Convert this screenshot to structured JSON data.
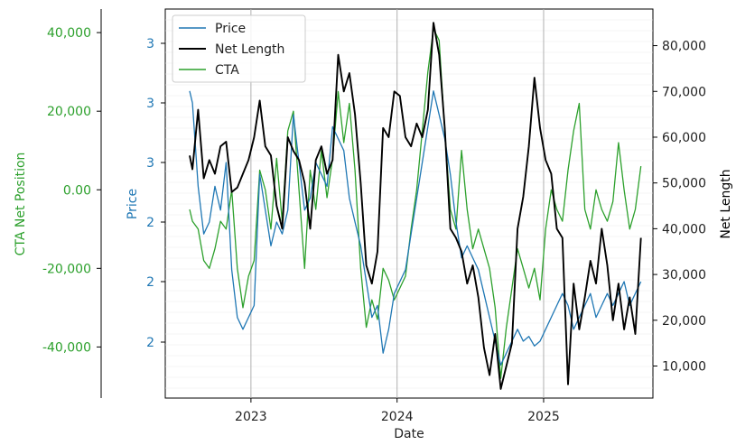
{
  "chart_data": {
    "type": "line",
    "xlabel": "Date",
    "x_ticks": [
      "2023",
      "2024",
      "2025"
    ],
    "x_range": [
      "2022-06-01",
      "2025-10-01"
    ],
    "axes": {
      "price": {
        "label": "Price",
        "color": "#1f77b4",
        "tick_labels": [
          "3",
          "3",
          "3",
          "2",
          "2",
          "2"
        ]
      },
      "net_length": {
        "label": "Net Length",
        "color": "#000000",
        "ylim": [
          3000,
          88000
        ],
        "ticks": [
          10000,
          20000,
          30000,
          40000,
          50000,
          60000,
          70000,
          80000
        ],
        "tick_labels": [
          "10,000",
          "20,000",
          "30,000",
          "40,000",
          "50,000",
          "60,000",
          "70,000",
          "80,000"
        ]
      },
      "cta": {
        "label": "CTA Net Position",
        "color": "#2ca02c",
        "ylim": [
          -53000,
          46000
        ],
        "ticks": [
          -40000,
          -20000,
          0,
          20000,
          40000
        ],
        "tick_labels": [
          "-40,000",
          "-20,000",
          "0.00",
          "20,000",
          "40,000"
        ]
      }
    },
    "legend": {
      "placement": "top-left",
      "entries": [
        "Price",
        "Net Length",
        "CTA"
      ]
    },
    "grid": "vertical at year ticks, horizontal minor lines",
    "series": [
      {
        "name": "Price",
        "color": "#1f77b4",
        "points": [
          [
            "2022-08-01",
            3.05
          ],
          [
            "2022-08-08",
            3.0
          ],
          [
            "2022-08-22",
            2.65
          ],
          [
            "2022-09-05",
            2.45
          ],
          [
            "2022-09-19",
            2.5
          ],
          [
            "2022-10-03",
            2.65
          ],
          [
            "2022-10-17",
            2.55
          ],
          [
            "2022-10-31",
            2.75
          ],
          [
            "2022-11-14",
            2.3
          ],
          [
            "2022-11-28",
            2.1
          ],
          [
            "2022-12-12",
            2.05
          ],
          [
            "2022-12-26",
            2.1
          ],
          [
            "2023-01-09",
            2.15
          ],
          [
            "2023-01-23",
            2.7
          ],
          [
            "2023-02-06",
            2.55
          ],
          [
            "2023-02-20",
            2.4
          ],
          [
            "2023-03-06",
            2.5
          ],
          [
            "2023-03-20",
            2.45
          ],
          [
            "2023-04-03",
            2.55
          ],
          [
            "2023-04-17",
            2.95
          ],
          [
            "2023-05-01",
            2.75
          ],
          [
            "2023-05-15",
            2.55
          ],
          [
            "2023-05-29",
            2.6
          ],
          [
            "2023-06-12",
            2.75
          ],
          [
            "2023-06-26",
            2.7
          ],
          [
            "2023-07-10",
            2.65
          ],
          [
            "2023-07-24",
            2.9
          ],
          [
            "2023-08-07",
            2.85
          ],
          [
            "2023-08-21",
            2.8
          ],
          [
            "2023-09-04",
            2.6
          ],
          [
            "2023-09-18",
            2.5
          ],
          [
            "2023-10-02",
            2.4
          ],
          [
            "2023-10-16",
            2.25
          ],
          [
            "2023-10-30",
            2.1
          ],
          [
            "2023-11-13",
            2.15
          ],
          [
            "2023-11-27",
            1.95
          ],
          [
            "2023-12-11",
            2.05
          ],
          [
            "2023-12-25",
            2.2
          ],
          [
            "2024-01-08",
            2.25
          ],
          [
            "2024-01-22",
            2.3
          ],
          [
            "2024-02-05",
            2.45
          ],
          [
            "2024-02-19",
            2.6
          ],
          [
            "2024-03-04",
            2.75
          ],
          [
            "2024-03-18",
            2.9
          ],
          [
            "2024-04-01",
            3.05
          ],
          [
            "2024-04-15",
            2.95
          ],
          [
            "2024-04-29",
            2.85
          ],
          [
            "2024-05-13",
            2.7
          ],
          [
            "2024-05-27",
            2.5
          ],
          [
            "2024-06-10",
            2.35
          ],
          [
            "2024-06-24",
            2.4
          ],
          [
            "2024-07-08",
            2.35
          ],
          [
            "2024-07-22",
            2.3
          ],
          [
            "2024-08-05",
            2.2
          ],
          [
            "2024-08-19",
            2.1
          ],
          [
            "2024-09-02",
            2.0
          ],
          [
            "2024-09-16",
            1.9
          ],
          [
            "2024-09-30",
            1.95
          ],
          [
            "2024-10-14",
            2.0
          ],
          [
            "2024-10-28",
            2.05
          ],
          [
            "2024-11-11",
            2.0
          ],
          [
            "2024-11-25",
            2.02
          ],
          [
            "2024-12-09",
            1.98
          ],
          [
            "2024-12-23",
            2.0
          ],
          [
            "2025-01-06",
            2.05
          ],
          [
            "2025-01-20",
            2.1
          ],
          [
            "2025-02-03",
            2.15
          ],
          [
            "2025-02-17",
            2.2
          ],
          [
            "2025-03-03",
            2.15
          ],
          [
            "2025-03-17",
            2.05
          ],
          [
            "2025-03-31",
            2.1
          ],
          [
            "2025-04-14",
            2.15
          ],
          [
            "2025-04-28",
            2.2
          ],
          [
            "2025-05-12",
            2.1
          ],
          [
            "2025-05-26",
            2.15
          ],
          [
            "2025-06-09",
            2.2
          ],
          [
            "2025-06-23",
            2.15
          ],
          [
            "2025-07-07",
            2.2
          ],
          [
            "2025-07-21",
            2.25
          ],
          [
            "2025-08-04",
            2.15
          ],
          [
            "2025-08-18",
            2.2
          ],
          [
            "2025-09-01",
            2.25
          ]
        ]
      },
      {
        "name": "Net Length",
        "color": "#000000",
        "points": [
          [
            "2022-08-01",
            56000
          ],
          [
            "2022-08-08",
            53000
          ],
          [
            "2022-08-22",
            66000
          ],
          [
            "2022-09-05",
            51000
          ],
          [
            "2022-09-19",
            55000
          ],
          [
            "2022-10-03",
            52000
          ],
          [
            "2022-10-17",
            58000
          ],
          [
            "2022-10-31",
            59000
          ],
          [
            "2022-11-14",
            48000
          ],
          [
            "2022-11-28",
            49000
          ],
          [
            "2022-12-12",
            52000
          ],
          [
            "2022-12-26",
            55000
          ],
          [
            "2023-01-09",
            60000
          ],
          [
            "2023-01-23",
            68000
          ],
          [
            "2023-02-06",
            58000
          ],
          [
            "2023-02-20",
            56000
          ],
          [
            "2023-03-06",
            45000
          ],
          [
            "2023-03-20",
            40000
          ],
          [
            "2023-04-03",
            60000
          ],
          [
            "2023-04-17",
            57000
          ],
          [
            "2023-05-01",
            55000
          ],
          [
            "2023-05-15",
            50000
          ],
          [
            "2023-05-29",
            40000
          ],
          [
            "2023-06-12",
            55000
          ],
          [
            "2023-06-26",
            58000
          ],
          [
            "2023-07-10",
            52000
          ],
          [
            "2023-07-24",
            55000
          ],
          [
            "2023-08-07",
            78000
          ],
          [
            "2023-08-21",
            70000
          ],
          [
            "2023-09-04",
            74000
          ],
          [
            "2023-09-18",
            65000
          ],
          [
            "2023-10-02",
            50000
          ],
          [
            "2023-10-16",
            32000
          ],
          [
            "2023-10-30",
            28000
          ],
          [
            "2023-11-13",
            35000
          ],
          [
            "2023-11-27",
            62000
          ],
          [
            "2023-12-11",
            60000
          ],
          [
            "2023-12-25",
            70000
          ],
          [
            "2024-01-08",
            69000
          ],
          [
            "2024-01-22",
            60000
          ],
          [
            "2024-02-05",
            58000
          ],
          [
            "2024-02-19",
            63000
          ],
          [
            "2024-03-04",
            60000
          ],
          [
            "2024-03-18",
            66000
          ],
          [
            "2024-04-01",
            85000
          ],
          [
            "2024-04-15",
            78000
          ],
          [
            "2024-04-29",
            62000
          ],
          [
            "2024-05-13",
            40000
          ],
          [
            "2024-05-27",
            38000
          ],
          [
            "2024-06-10",
            35000
          ],
          [
            "2024-06-24",
            28000
          ],
          [
            "2024-07-08",
            32000
          ],
          [
            "2024-07-22",
            25000
          ],
          [
            "2024-08-05",
            14000
          ],
          [
            "2024-08-19",
            8000
          ],
          [
            "2024-09-02",
            17000
          ],
          [
            "2024-09-16",
            5000
          ],
          [
            "2024-09-30",
            10000
          ],
          [
            "2024-10-14",
            15000
          ],
          [
            "2024-10-28",
            40000
          ],
          [
            "2024-11-11",
            47000
          ],
          [
            "2024-11-25",
            58000
          ],
          [
            "2024-12-09",
            73000
          ],
          [
            "2024-12-23",
            62000
          ],
          [
            "2025-01-06",
            55000
          ],
          [
            "2025-01-20",
            52000
          ],
          [
            "2025-02-03",
            40000
          ],
          [
            "2025-02-17",
            38000
          ],
          [
            "2025-03-03",
            6000
          ],
          [
            "2025-03-17",
            28000
          ],
          [
            "2025-03-31",
            18000
          ],
          [
            "2025-04-14",
            25000
          ],
          [
            "2025-04-28",
            33000
          ],
          [
            "2025-05-12",
            28000
          ],
          [
            "2025-05-26",
            40000
          ],
          [
            "2025-06-09",
            32000
          ],
          [
            "2025-06-23",
            20000
          ],
          [
            "2025-07-07",
            28000
          ],
          [
            "2025-07-21",
            18000
          ],
          [
            "2025-08-04",
            25000
          ],
          [
            "2025-08-18",
            17000
          ],
          [
            "2025-09-01",
            38000
          ]
        ]
      },
      {
        "name": "CTA",
        "color": "#2ca02c",
        "points": [
          [
            "2022-08-01",
            -5000
          ],
          [
            "2022-08-08",
            -8000
          ],
          [
            "2022-08-22",
            -10000
          ],
          [
            "2022-09-05",
            -18000
          ],
          [
            "2022-09-19",
            -20000
          ],
          [
            "2022-10-03",
            -15000
          ],
          [
            "2022-10-17",
            -8000
          ],
          [
            "2022-10-31",
            -10000
          ],
          [
            "2022-11-14",
            0
          ],
          [
            "2022-11-28",
            -20000
          ],
          [
            "2022-12-12",
            -30000
          ],
          [
            "2022-12-26",
            -22000
          ],
          [
            "2023-01-09",
            -18000
          ],
          [
            "2023-01-23",
            5000
          ],
          [
            "2023-02-06",
            0
          ],
          [
            "2023-02-20",
            -10000
          ],
          [
            "2023-03-06",
            8000
          ],
          [
            "2023-03-20",
            -8000
          ],
          [
            "2023-04-03",
            15000
          ],
          [
            "2023-04-17",
            20000
          ],
          [
            "2023-05-01",
            0
          ],
          [
            "2023-05-15",
            -20000
          ],
          [
            "2023-05-29",
            5000
          ],
          [
            "2023-06-12",
            -5000
          ],
          [
            "2023-06-26",
            10000
          ],
          [
            "2023-07-10",
            -2000
          ],
          [
            "2023-07-24",
            8000
          ],
          [
            "2023-08-07",
            25000
          ],
          [
            "2023-08-21",
            12000
          ],
          [
            "2023-09-04",
            22000
          ],
          [
            "2023-09-18",
            5000
          ],
          [
            "2023-10-02",
            -20000
          ],
          [
            "2023-10-16",
            -35000
          ],
          [
            "2023-10-30",
            -28000
          ],
          [
            "2023-11-13",
            -33000
          ],
          [
            "2023-11-27",
            -20000
          ],
          [
            "2023-12-11",
            -23000
          ],
          [
            "2023-12-25",
            -28000
          ],
          [
            "2024-01-08",
            -25000
          ],
          [
            "2024-01-22",
            -22000
          ],
          [
            "2024-02-05",
            -10000
          ],
          [
            "2024-02-19",
            0
          ],
          [
            "2024-03-04",
            15000
          ],
          [
            "2024-03-18",
            30000
          ],
          [
            "2024-04-01",
            41000
          ],
          [
            "2024-04-15",
            38000
          ],
          [
            "2024-04-29",
            15000
          ],
          [
            "2024-05-13",
            -5000
          ],
          [
            "2024-05-27",
            -10000
          ],
          [
            "2024-06-10",
            10000
          ],
          [
            "2024-06-24",
            -5000
          ],
          [
            "2024-07-08",
            -15000
          ],
          [
            "2024-07-22",
            -10000
          ],
          [
            "2024-08-05",
            -15000
          ],
          [
            "2024-08-19",
            -20000
          ],
          [
            "2024-09-02",
            -30000
          ],
          [
            "2024-09-16",
            -48000
          ],
          [
            "2024-09-30",
            -35000
          ],
          [
            "2024-10-14",
            -25000
          ],
          [
            "2024-10-28",
            -15000
          ],
          [
            "2024-11-11",
            -20000
          ],
          [
            "2024-11-25",
            -25000
          ],
          [
            "2024-12-09",
            -20000
          ],
          [
            "2024-12-23",
            -28000
          ],
          [
            "2025-01-06",
            -10000
          ],
          [
            "2025-01-20",
            0
          ],
          [
            "2025-02-03",
            -5000
          ],
          [
            "2025-02-17",
            -8000
          ],
          [
            "2025-03-03",
            5000
          ],
          [
            "2025-03-17",
            15000
          ],
          [
            "2025-03-31",
            22000
          ],
          [
            "2025-04-14",
            -5000
          ],
          [
            "2025-04-28",
            -10000
          ],
          [
            "2025-05-12",
            0
          ],
          [
            "2025-05-26",
            -5000
          ],
          [
            "2025-06-09",
            -8000
          ],
          [
            "2025-06-23",
            -3000
          ],
          [
            "2025-07-07",
            12000
          ],
          [
            "2025-07-21",
            0
          ],
          [
            "2025-08-04",
            -10000
          ],
          [
            "2025-08-18",
            -5000
          ],
          [
            "2025-09-01",
            6000
          ]
        ]
      }
    ]
  }
}
